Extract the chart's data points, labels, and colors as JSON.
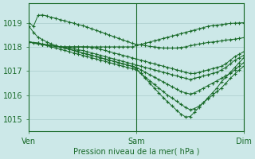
{
  "bg_color": "#cce8e8",
  "grid_color": "#aacccc",
  "line_color": "#1a6b2a",
  "title": "Pression niveau de la mer( hPa )",
  "x_ticks": [
    0,
    48,
    96
  ],
  "x_tick_labels": [
    "Ven",
    "Sam",
    "Dim"
  ],
  "ylim": [
    1014.5,
    1019.8
  ],
  "y_ticks": [
    1015,
    1016,
    1017,
    1018,
    1019
  ],
  "xlim": [
    0,
    96
  ],
  "series": [
    {
      "x": [
        0,
        4,
        6,
        8,
        10,
        12,
        14,
        16,
        18,
        20,
        22,
        24,
        26,
        28,
        30,
        32,
        34,
        36,
        38,
        40,
        42,
        44,
        46,
        48,
        50,
        52,
        54,
        56,
        58,
        60,
        62,
        64,
        66,
        68,
        70,
        72,
        74,
        76,
        78,
        80,
        82,
        84,
        86,
        88,
        90,
        92,
        94,
        96
      ],
      "y": [
        1018.2,
        1018.15,
        1018.1,
        1018.08,
        1018.05,
        1018.02,
        1018.0,
        1018.0,
        1018.0,
        1018.0,
        1018.0,
        1018.0,
        1018.0,
        1017.98,
        1017.95,
        1017.9,
        1017.85,
        1017.8,
        1017.75,
        1017.7,
        1017.65,
        1017.6,
        1017.55,
        1017.5,
        1017.45,
        1017.4,
        1017.35,
        1017.3,
        1017.25,
        1017.2,
        1017.15,
        1017.1,
        1017.05,
        1017.0,
        1016.95,
        1016.9,
        1016.9,
        1016.95,
        1017.0,
        1017.05,
        1017.1,
        1017.15,
        1017.2,
        1017.3,
        1017.45,
        1017.6,
        1017.7,
        1017.8
      ]
    },
    {
      "x": [
        0,
        4,
        6,
        8,
        10,
        12,
        14,
        16,
        18,
        20,
        22,
        24,
        26,
        28,
        30,
        32,
        34,
        36,
        38,
        40,
        42,
        44,
        46,
        48,
        50,
        52,
        54,
        56,
        58,
        60,
        62,
        64,
        66,
        68,
        70,
        72,
        74,
        76,
        78,
        80,
        82,
        84,
        86,
        88,
        90,
        92,
        94,
        96
      ],
      "y": [
        1018.2,
        1018.15,
        1018.1,
        1018.08,
        1018.05,
        1018.02,
        1018.0,
        1017.98,
        1017.95,
        1017.92,
        1017.88,
        1017.85,
        1017.8,
        1017.75,
        1017.7,
        1017.65,
        1017.6,
        1017.55,
        1017.5,
        1017.45,
        1017.4,
        1017.35,
        1017.3,
        1017.25,
        1017.2,
        1017.15,
        1017.1,
        1017.05,
        1017.0,
        1016.95,
        1016.9,
        1016.85,
        1016.8,
        1016.75,
        1016.7,
        1016.65,
        1016.7,
        1016.75,
        1016.8,
        1016.85,
        1016.9,
        1016.95,
        1017.05,
        1017.15,
        1017.3,
        1017.45,
        1017.55,
        1017.65
      ]
    },
    {
      "x": [
        0,
        4,
        6,
        8,
        10,
        12,
        14,
        16,
        18,
        20,
        22,
        24,
        26,
        28,
        30,
        32,
        34,
        36,
        38,
        40,
        42,
        44,
        46,
        48,
        50,
        52,
        54,
        56,
        58,
        60,
        62,
        64,
        66,
        68,
        70,
        72,
        74,
        76,
        78,
        80,
        82,
        84,
        86,
        88,
        90,
        92,
        94,
        96
      ],
      "y": [
        1018.2,
        1018.15,
        1018.12,
        1018.08,
        1018.05,
        1018.02,
        1018.0,
        1017.95,
        1017.9,
        1017.85,
        1017.8,
        1017.75,
        1017.7,
        1017.65,
        1017.6,
        1017.55,
        1017.5,
        1017.45,
        1017.4,
        1017.35,
        1017.3,
        1017.25,
        1017.2,
        1017.15,
        1017.05,
        1016.95,
        1016.85,
        1016.75,
        1016.65,
        1016.55,
        1016.45,
        1016.35,
        1016.25,
        1016.15,
        1016.1,
        1016.05,
        1016.1,
        1016.2,
        1016.3,
        1016.4,
        1016.5,
        1016.6,
        1016.7,
        1016.8,
        1016.9,
        1017.05,
        1017.2,
        1017.35
      ]
    },
    {
      "x": [
        0,
        4,
        6,
        8,
        10,
        12,
        14,
        16,
        18,
        20,
        22,
        24,
        26,
        28,
        30,
        32,
        34,
        36,
        38,
        40,
        42,
        44,
        46,
        48,
        50,
        52,
        54,
        56,
        58,
        60,
        62,
        64,
        66,
        68,
        70,
        72,
        74,
        76,
        78,
        80,
        82,
        84,
        86,
        88,
        90,
        92,
        94,
        96
      ],
      "y": [
        1018.2,
        1018.15,
        1018.1,
        1018.05,
        1018.0,
        1017.95,
        1017.9,
        1017.85,
        1017.8,
        1017.75,
        1017.7,
        1017.65,
        1017.6,
        1017.55,
        1017.5,
        1017.45,
        1017.4,
        1017.35,
        1017.3,
        1017.25,
        1017.2,
        1017.15,
        1017.1,
        1017.05,
        1016.9,
        1016.75,
        1016.6,
        1016.45,
        1016.3,
        1016.15,
        1016.0,
        1015.88,
        1015.75,
        1015.62,
        1015.5,
        1015.4,
        1015.45,
        1015.55,
        1015.7,
        1015.85,
        1016.0,
        1016.15,
        1016.3,
        1016.5,
        1016.7,
        1016.88,
        1017.05,
        1017.2
      ]
    },
    {
      "x": [
        0,
        2,
        4,
        6,
        8,
        10,
        12,
        14,
        16,
        18,
        20,
        22,
        24,
        26,
        28,
        30,
        32,
        34,
        36,
        38,
        40,
        42,
        44,
        46,
        48,
        50,
        52,
        54,
        56,
        58,
        60,
        62,
        64,
        66,
        68,
        70,
        72,
        74,
        76,
        78,
        80,
        82,
        84,
        86,
        88,
        90,
        92,
        94,
        96
      ],
      "y": [
        1018.85,
        1018.6,
        1018.4,
        1018.3,
        1018.2,
        1018.12,
        1018.05,
        1018.0,
        1017.95,
        1017.9,
        1017.85,
        1017.8,
        1017.75,
        1017.7,
        1017.65,
        1017.6,
        1017.55,
        1017.5,
        1017.45,
        1017.4,
        1017.35,
        1017.3,
        1017.25,
        1017.2,
        1017.1,
        1016.9,
        1016.7,
        1016.5,
        1016.3,
        1016.1,
        1015.9,
        1015.72,
        1015.55,
        1015.38,
        1015.22,
        1015.1,
        1015.12,
        1015.3,
        1015.5,
        1015.7,
        1015.9,
        1016.1,
        1016.3,
        1016.55,
        1016.75,
        1016.95,
        1017.15,
        1017.35,
        1017.55
      ]
    },
    {
      "x": [
        0,
        2,
        4,
        6,
        8,
        10,
        12,
        14,
        16,
        18,
        20,
        22,
        24,
        26,
        28,
        30,
        32,
        34,
        36,
        38,
        40,
        42,
        44,
        46,
        48,
        50,
        52,
        54,
        56,
        58,
        60,
        62,
        64,
        66,
        68,
        70,
        72,
        74,
        76,
        78,
        80,
        82,
        84,
        86,
        88,
        90,
        92,
        94,
        96
      ],
      "y": [
        1019.0,
        1018.85,
        1019.3,
        1019.32,
        1019.28,
        1019.22,
        1019.18,
        1019.12,
        1019.08,
        1019.02,
        1018.98,
        1018.92,
        1018.88,
        1018.82,
        1018.75,
        1018.68,
        1018.62,
        1018.55,
        1018.48,
        1018.42,
        1018.35,
        1018.28,
        1018.22,
        1018.15,
        1018.1,
        1018.08,
        1018.05,
        1018.02,
        1018.0,
        1017.98,
        1017.95,
        1017.95,
        1017.95,
        1017.95,
        1017.98,
        1018.0,
        1018.05,
        1018.08,
        1018.12,
        1018.15,
        1018.18,
        1018.2,
        1018.22,
        1018.25,
        1018.28,
        1018.3,
        1018.32,
        1018.35,
        1018.38
      ]
    },
    {
      "x": [
        0,
        2,
        4,
        6,
        8,
        10,
        12,
        14,
        16,
        18,
        20,
        22,
        24,
        26,
        28,
        30,
        32,
        34,
        36,
        38,
        40,
        42,
        44,
        46,
        48,
        50,
        52,
        54,
        56,
        58,
        60,
        62,
        64,
        66,
        68,
        70,
        72,
        74,
        76,
        78,
        80,
        82,
        84,
        86,
        88,
        90,
        92,
        94,
        96
      ],
      "y": [
        1018.2,
        1018.15,
        1018.12,
        1018.1,
        1018.08,
        1018.05,
        1018.02,
        1018.0,
        1018.0,
        1018.0,
        1018.0,
        1018.0,
        1018.0,
        1018.0,
        1018.0,
        1018.0,
        1018.0,
        1018.0,
        1018.0,
        1018.0,
        1018.0,
        1018.0,
        1018.0,
        1018.0,
        1018.05,
        1018.1,
        1018.15,
        1018.2,
        1018.25,
        1018.3,
        1018.35,
        1018.4,
        1018.45,
        1018.5,
        1018.55,
        1018.6,
        1018.65,
        1018.7,
        1018.75,
        1018.8,
        1018.85,
        1018.88,
        1018.9,
        1018.92,
        1018.95,
        1018.97,
        1018.98,
        1018.99,
        1019.0
      ]
    }
  ]
}
